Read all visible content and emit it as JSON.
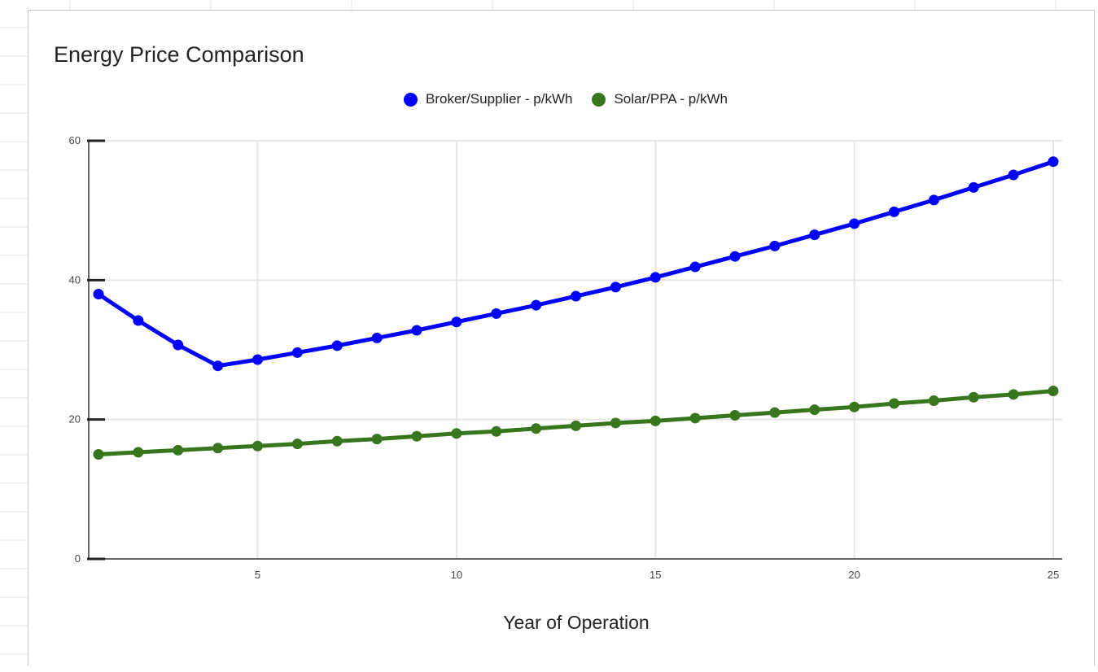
{
  "chart_data": {
    "type": "line",
    "title": "Energy Price Comparison",
    "xlabel": "Year of Operation",
    "ylabel": "",
    "xlim": [
      1,
      25
    ],
    "ylim": [
      0,
      60
    ],
    "x_ticks": [
      5,
      10,
      15,
      20,
      25
    ],
    "y_ticks": [
      0,
      20,
      40,
      60
    ],
    "grid": true,
    "legend_position": "top",
    "x": [
      1,
      2,
      3,
      4,
      5,
      6,
      7,
      8,
      9,
      10,
      11,
      12,
      13,
      14,
      15,
      16,
      17,
      18,
      19,
      20,
      21,
      22,
      23,
      24,
      25
    ],
    "series": [
      {
        "name": "Broker/Supplier - p/kWh",
        "color": "#0000ff",
        "values": [
          38.0,
          34.2,
          30.7,
          27.7,
          28.6,
          29.6,
          30.6,
          31.7,
          32.8,
          34.0,
          35.2,
          36.4,
          37.7,
          39.0,
          40.4,
          41.9,
          43.4,
          44.9,
          46.5,
          48.1,
          49.8,
          51.5,
          53.3,
          55.1,
          57.0
        ]
      },
      {
        "name": "Solar/PPA - p/kWh",
        "color": "#38761d",
        "values": [
          15.0,
          15.3,
          15.6,
          15.9,
          16.2,
          16.5,
          16.9,
          17.2,
          17.6,
          18.0,
          18.3,
          18.7,
          19.1,
          19.5,
          19.8,
          20.2,
          20.6,
          21.0,
          21.4,
          21.8,
          22.3,
          22.7,
          23.2,
          23.6,
          24.1
        ]
      }
    ]
  }
}
